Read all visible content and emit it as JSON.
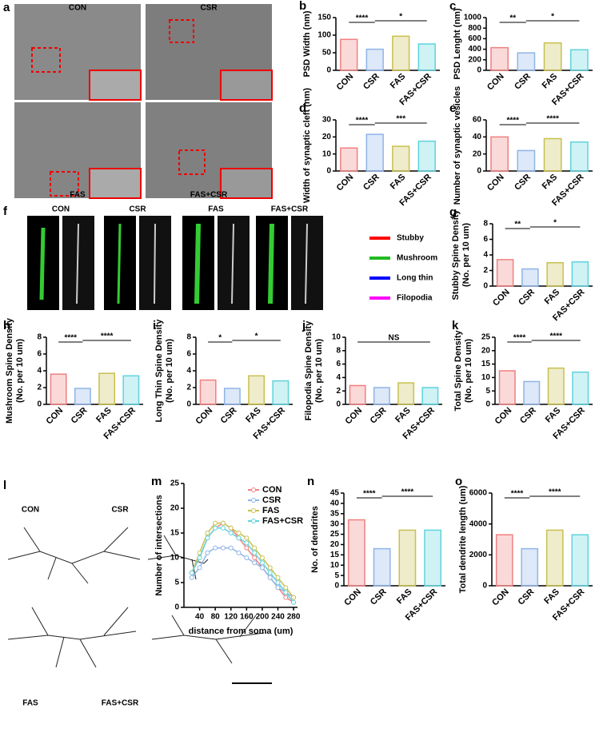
{
  "chart_data": [
    {
      "type": "bar",
      "panel": "b",
      "ylabel": "PSD Width (nm)",
      "categories": [
        "CON",
        "CSR",
        "FAS",
        "FAS+CSR"
      ],
      "values": [
        88,
        60,
        97,
        75
      ],
      "colors": [
        "#f08080",
        "#8fb4e8",
        "#c8c050",
        "#5fd3dd"
      ],
      "ylim": [
        0,
        150
      ],
      "yticks": [
        0,
        50,
        100,
        150
      ],
      "annotations": [
        {
          "text": "****",
          "between": [
            "CON",
            "CSR"
          ]
        },
        {
          "text": "*",
          "between": [
            "CSR",
            "FAS+CSR"
          ]
        }
      ]
    },
    {
      "type": "bar",
      "panel": "c",
      "ylabel": "PSD Lenght (nm)",
      "categories": [
        "CON",
        "CSR",
        "FAS",
        "FAS+CSR"
      ],
      "values": [
        430,
        330,
        520,
        390
      ],
      "colors": [
        "#f08080",
        "#8fb4e8",
        "#c8c050",
        "#5fd3dd"
      ],
      "ylim": [
        0,
        1000
      ],
      "yticks": [
        0,
        200,
        400,
        600,
        800,
        1000
      ],
      "annotations": [
        {
          "text": "**",
          "between": [
            "CON",
            "CSR"
          ]
        },
        {
          "text": "*",
          "between": [
            "CSR",
            "FAS+CSR"
          ]
        }
      ]
    },
    {
      "type": "bar",
      "panel": "d",
      "ylabel": "Width of synaptic cleft (nm)",
      "categories": [
        "CON",
        "CSR",
        "FAS",
        "FAS+CSR"
      ],
      "values": [
        13.5,
        21.5,
        14.5,
        17.5
      ],
      "colors": [
        "#f08080",
        "#8fb4e8",
        "#c8c050",
        "#5fd3dd"
      ],
      "ylim": [
        0,
        30
      ],
      "yticks": [
        0,
        10,
        20,
        30
      ],
      "annotations": [
        {
          "text": "****",
          "between": [
            "CON",
            "CSR"
          ]
        },
        {
          "text": "***",
          "between": [
            "CSR",
            "FAS+CSR"
          ]
        }
      ]
    },
    {
      "type": "bar",
      "panel": "e",
      "ylabel": "Number of synaptic vesicles",
      "categories": [
        "CON",
        "CSR",
        "FAS",
        "FAS+CSR"
      ],
      "values": [
        40,
        24,
        38,
        34
      ],
      "colors": [
        "#f08080",
        "#8fb4e8",
        "#c8c050",
        "#5fd3dd"
      ],
      "ylim": [
        0,
        60
      ],
      "yticks": [
        0,
        20,
        40,
        60
      ],
      "annotations": [
        {
          "text": "****",
          "between": [
            "CON",
            "CSR"
          ]
        },
        {
          "text": "****",
          "between": [
            "CSR",
            "FAS+CSR"
          ]
        }
      ]
    },
    {
      "type": "bar",
      "panel": "g",
      "ylabel": "Stubby Spine Density",
      "ylabel2": "(No. per 10 um)",
      "categories": [
        "CON",
        "CSR",
        "FAS",
        "FAS+CSR"
      ],
      "values": [
        3.4,
        2.2,
        3.0,
        3.1
      ],
      "colors": [
        "#f08080",
        "#8fb4e8",
        "#c8c050",
        "#5fd3dd"
      ],
      "ylim": [
        0,
        8
      ],
      "yticks": [
        0,
        2,
        4,
        6,
        8
      ],
      "annotations": [
        {
          "text": "**",
          "between": [
            "CON",
            "CSR"
          ]
        },
        {
          "text": "*",
          "between": [
            "CSR",
            "FAS+CSR"
          ]
        }
      ]
    },
    {
      "type": "bar",
      "panel": "h",
      "ylabel": "Mushroom Spine Density",
      "ylabel2": "(No. per 10 um)",
      "categories": [
        "CON",
        "CSR",
        "FAS",
        "FAS+CSR"
      ],
      "values": [
        3.6,
        1.9,
        3.7,
        3.4
      ],
      "colors": [
        "#f08080",
        "#8fb4e8",
        "#c8c050",
        "#5fd3dd"
      ],
      "ylim": [
        0,
        8
      ],
      "yticks": [
        0,
        2,
        4,
        6,
        8
      ],
      "annotations": [
        {
          "text": "****",
          "between": [
            "CON",
            "CSR"
          ]
        },
        {
          "text": "****",
          "between": [
            "CSR",
            "FAS+CSR"
          ]
        }
      ]
    },
    {
      "type": "bar",
      "panel": "i",
      "ylabel": "Long Thin Spine Density",
      "ylabel2": "(No. per 10 um)",
      "categories": [
        "CON",
        "CSR",
        "FAS",
        "FAS+CSR"
      ],
      "values": [
        2.9,
        1.9,
        3.4,
        2.8
      ],
      "colors": [
        "#f08080",
        "#8fb4e8",
        "#c8c050",
        "#5fd3dd"
      ],
      "ylim": [
        0,
        8
      ],
      "yticks": [
        0,
        2,
        4,
        6,
        8
      ],
      "annotations": [
        {
          "text": "*",
          "between": [
            "CON",
            "CSR"
          ]
        },
        {
          "text": "*",
          "between": [
            "CSR",
            "FAS+CSR"
          ]
        }
      ]
    },
    {
      "type": "bar",
      "panel": "j",
      "ylabel": "Filopodia Spine Density",
      "ylabel2": "(No. per 10 um)",
      "categories": [
        "CON",
        "CSR",
        "FAS",
        "FAS+CSR"
      ],
      "values": [
        2.8,
        2.5,
        3.2,
        2.5
      ],
      "colors": [
        "#f08080",
        "#8fb4e8",
        "#c8c050",
        "#5fd3dd"
      ],
      "ylim": [
        0,
        10
      ],
      "yticks": [
        0,
        2,
        4,
        6,
        8,
        10
      ],
      "annotations": [
        {
          "text": "NS",
          "between": [
            "CON",
            "FAS+CSR"
          ]
        }
      ]
    },
    {
      "type": "bar",
      "panel": "k",
      "ylabel": "Total Spine Density",
      "ylabel2": "(No. per 10 um)",
      "categories": [
        "CON",
        "CSR",
        "FAS",
        "FAS+CSR"
      ],
      "values": [
        12.5,
        8.5,
        13.5,
        12
      ],
      "colors": [
        "#f08080",
        "#8fb4e8",
        "#c8c050",
        "#5fd3dd"
      ],
      "ylim": [
        0,
        25
      ],
      "yticks": [
        0,
        5,
        10,
        15,
        20,
        25
      ],
      "annotations": [
        {
          "text": "****",
          "between": [
            "CON",
            "CSR"
          ]
        },
        {
          "text": "****",
          "between": [
            "CSR",
            "FAS+CSR"
          ]
        }
      ]
    },
    {
      "type": "line",
      "panel": "m",
      "ylabel": "Number of intersections",
      "xlabel": "distance from soma (um)",
      "x": [
        20,
        40,
        60,
        80,
        100,
        120,
        140,
        160,
        180,
        200,
        220,
        240,
        260,
        280
      ],
      "xlim": [
        0,
        290
      ],
      "xticks": [
        40,
        80,
        120,
        160,
        200,
        240,
        280
      ],
      "ylim": [
        0,
        25
      ],
      "yticks": [
        0,
        5,
        10,
        15,
        20,
        25
      ],
      "series": [
        {
          "name": "CON",
          "color": "#f08080",
          "values": [
            7,
            10,
            14,
            16,
            17,
            16,
            14,
            12,
            10,
            8,
            6,
            4,
            2,
            1
          ]
        },
        {
          "name": "CSR",
          "color": "#8fb4e8",
          "values": [
            6,
            8,
            11,
            12,
            12,
            12,
            11,
            10,
            9,
            8,
            6,
            4,
            3,
            2
          ]
        },
        {
          "name": "FAS",
          "color": "#c8c050",
          "values": [
            7,
            11,
            15,
            17,
            17,
            16,
            15,
            14,
            12,
            10,
            8,
            6,
            4,
            2
          ]
        },
        {
          "name": "FAS+CSR",
          "color": "#5fd3dd",
          "values": [
            7,
            10,
            14,
            16,
            16,
            15,
            14,
            13,
            11,
            9,
            7,
            5,
            3,
            1
          ]
        }
      ]
    },
    {
      "type": "bar",
      "panel": "n",
      "ylabel": "No. of dendrites",
      "categories": [
        "CON",
        "CSR",
        "FAS",
        "FAS+CSR"
      ],
      "values": [
        32,
        18,
        27,
        27
      ],
      "colors": [
        "#f08080",
        "#8fb4e8",
        "#c8c050",
        "#5fd3dd"
      ],
      "ylim": [
        0,
        45
      ],
      "yticks": [
        0,
        5,
        10,
        15,
        20,
        25,
        30,
        35,
        40,
        45
      ],
      "annotations": [
        {
          "text": "****",
          "between": [
            "CON",
            "CSR"
          ]
        },
        {
          "text": "****",
          "between": [
            "CSR",
            "FAS+CSR"
          ]
        }
      ]
    },
    {
      "type": "bar",
      "panel": "o",
      "ylabel": "Total dendrite length (um)",
      "categories": [
        "CON",
        "CSR",
        "FAS",
        "FAS+CSR"
      ],
      "values": [
        3300,
        2400,
        3600,
        3300
      ],
      "colors": [
        "#f08080",
        "#8fb4e8",
        "#c8c050",
        "#5fd3dd"
      ],
      "ylim": [
        0,
        6000
      ],
      "yticks": [
        0,
        2000,
        4000,
        6000
      ],
      "annotations": [
        {
          "text": "****",
          "between": [
            "CON",
            "CSR"
          ]
        },
        {
          "text": "****",
          "between": [
            "CSR",
            "FAS+CSR"
          ]
        }
      ]
    }
  ],
  "images": {
    "a": {
      "panel": "a",
      "labels": [
        "CON",
        "CSR",
        "FAS",
        "FAS+CSR"
      ]
    },
    "f": {
      "panel": "f",
      "labels": [
        "CON",
        "CSR",
        "FAS",
        "FAS+CSR"
      ],
      "legend": [
        "Stubby",
        "Mushroom",
        "Long thin",
        "Filopodia"
      ],
      "legend_colors": [
        "#ff0000",
        "#22bb22",
        "#0000ff",
        "#ff00ff"
      ]
    },
    "l": {
      "panel": "l",
      "labels": [
        "CON",
        "CSR",
        "FAS",
        "FAS+CSR"
      ]
    }
  }
}
